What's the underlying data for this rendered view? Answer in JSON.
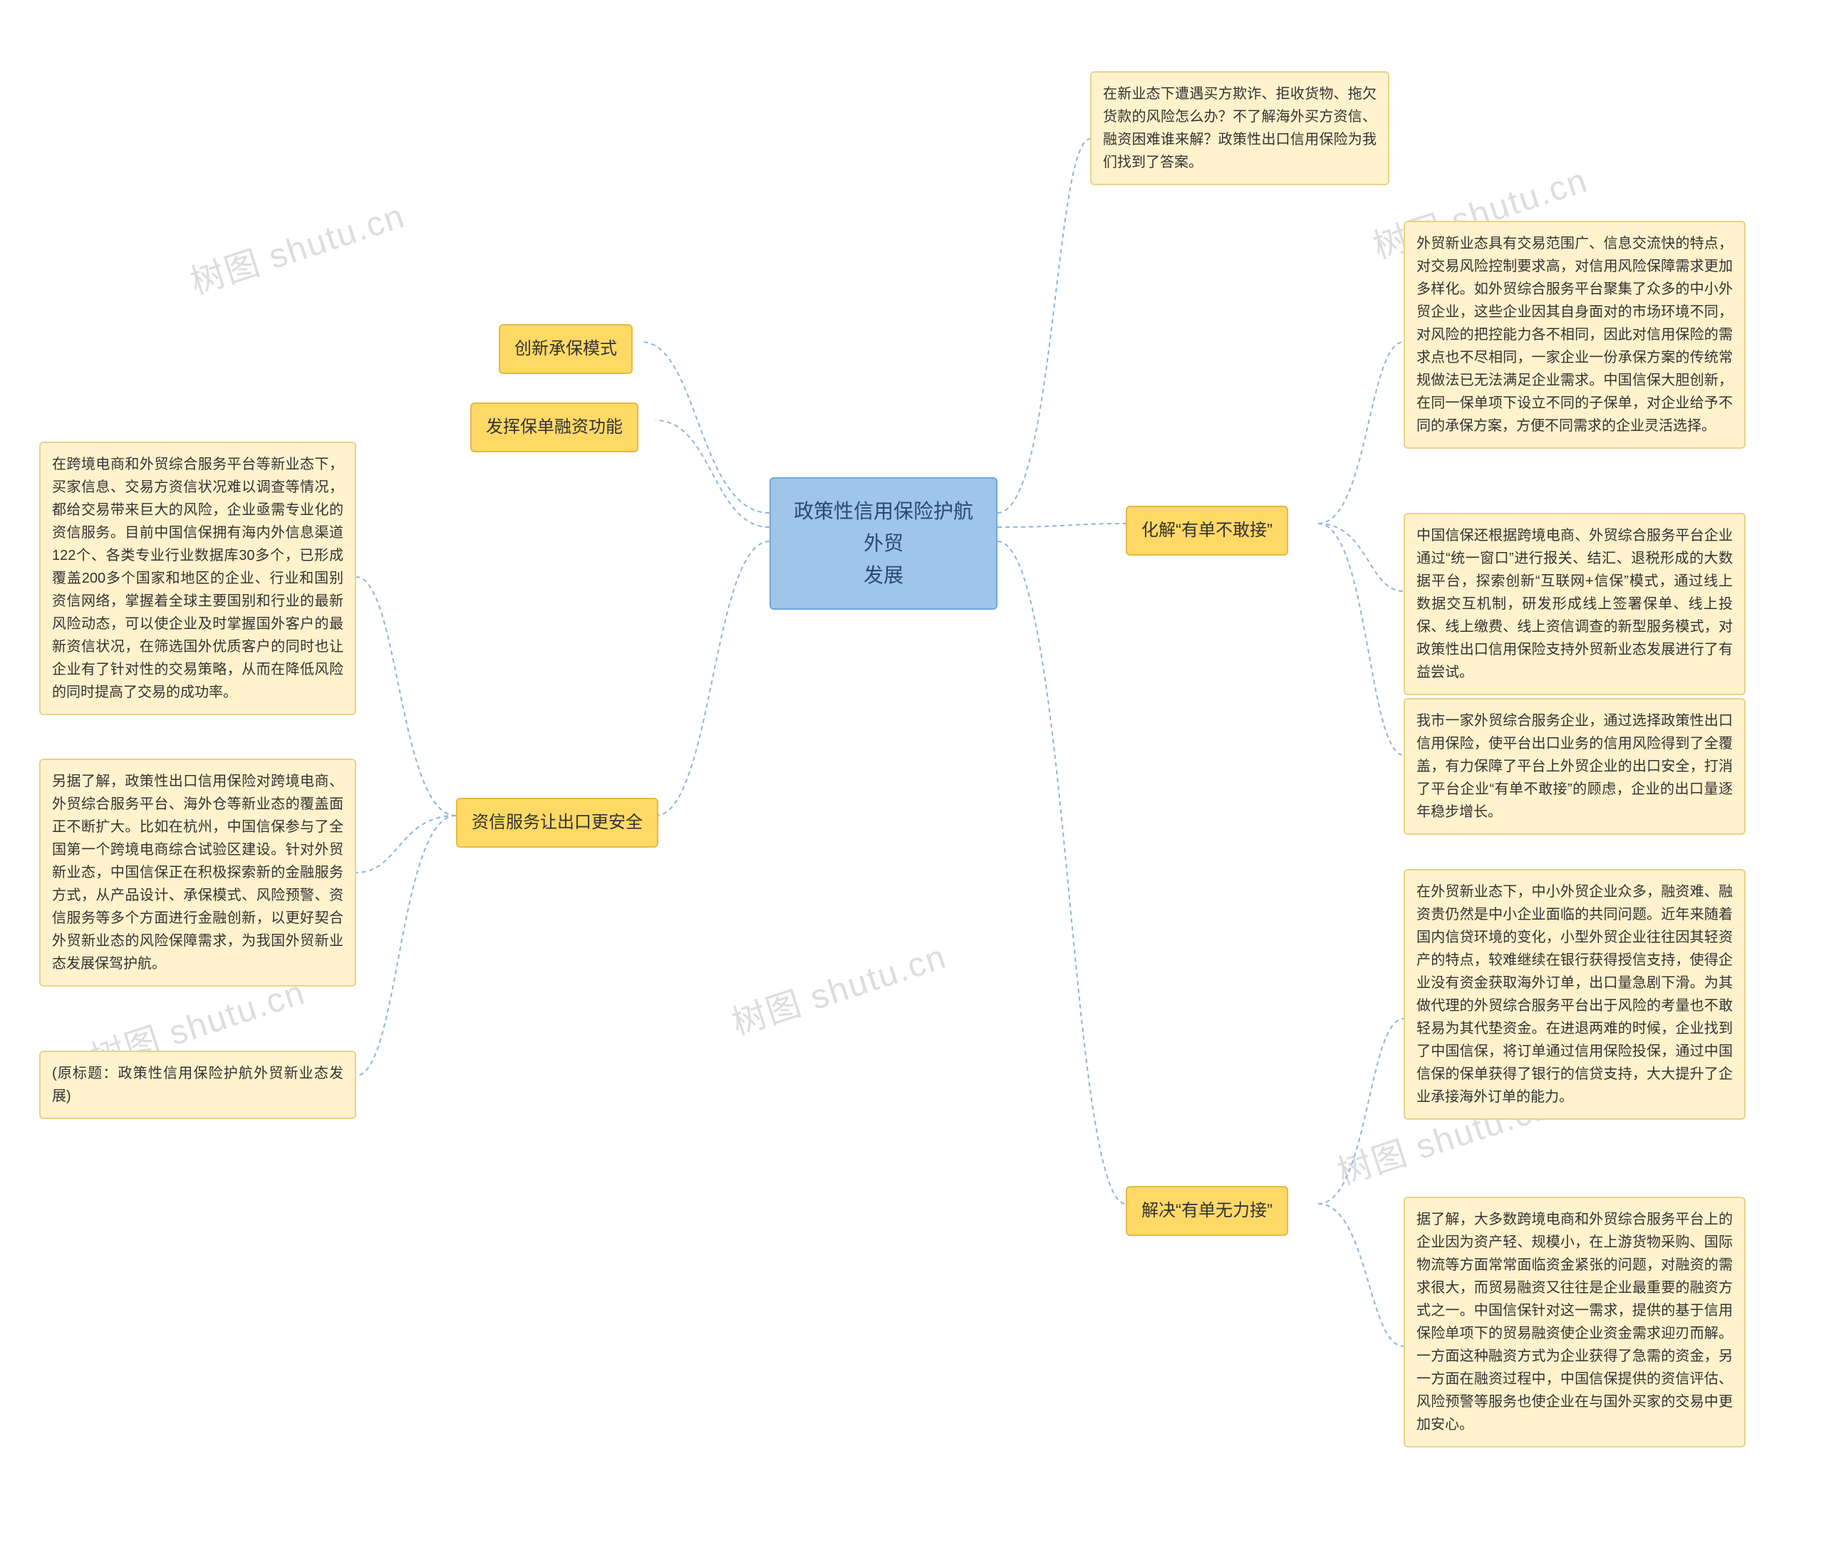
{
  "center": {
    "title": "政策性信用保险护航外贸\n发展"
  },
  "watermark": "树图 shutu.cn",
  "colors": {
    "center_fill": "#9fc5e8",
    "center_border": "#6fa8dc",
    "topic_fill": "#ffd966",
    "topic_border": "#e6b93f",
    "detail_fill": "#fff2cc",
    "detail_border": "#e8d28a",
    "connector": "#8fb4d9",
    "background": "#ffffff"
  },
  "left_branches": [
    {
      "label": "创新承保模式",
      "details": []
    },
    {
      "label": "发挥保单融资功能",
      "details": []
    },
    {
      "label": "资信服务让出口更安全",
      "details": [
        "在跨境电商和外贸综合服务平台等新业态下，买家信息、交易方资信状况难以调查等情况，都给交易带来巨大的风险，企业亟需专业化的资信服务。目前中国信保拥有海内外信息渠道122个、各类专业行业数据库30多个，已形成覆盖200多个国家和地区的企业、行业和国别资信网络，掌握着全球主要国别和行业的最新风险动态，可以使企业及时掌握国外客户的最新资信状况，在筛选国外优质客户的同时也让企业有了针对性的交易策略，从而在降低风险的同时提高了交易的成功率。",
        "另据了解，政策性出口信用保险对跨境电商、外贸综合服务平台、海外仓等新业态的覆盖面正不断扩大。比如在杭州，中国信保参与了全国第一个跨境电商综合试验区建设。针对外贸新业态，中国信保正在积极探索新的金融服务方式，从产品设计、承保模式、风险预警、资信服务等多个方面进行金融创新，以更好契合外贸新业态的风险保障需求，为我国外贸新业态发展保驾护航。",
        "(原标题：政策性信用保险护航外贸新业态发展)"
      ]
    }
  ],
  "right_top_detail": "在新业态下遭遇买方欺诈、拒收货物、拖欠货款的风险怎么办？不了解海外买方资信、融资困难谁来解？政策性出口信用保险为我们找到了答案。",
  "right_branches": [
    {
      "label": "化解“有单不敢接”",
      "details": [
        "外贸新业态具有交易范围广、信息交流快的特点，对交易风险控制要求高，对信用风险保障需求更加多样化。如外贸综合服务平台聚集了众多的中小外贸企业，这些企业因其自身面对的市场环境不同，对风险的把控能力各不相同，因此对信用保险的需求点也不尽相同，一家企业一份承保方案的传统常规做法已无法满足企业需求。中国信保大胆创新，在同一保单项下设立不同的子保单，对企业给予不同的承保方案，方便不同需求的企业灵活选择。",
        "中国信保还根据跨境电商、外贸综合服务平台企业通过“统一窗口”进行报关、结汇、退税形成的大数据平台，探索创新“互联网+信保”模式，通过线上数据交互机制，研发形成线上签署保单、线上投保、线上缴费、线上资信调查的新型服务模式，对政策性出口信用保险支持外贸新业态发展进行了有益尝试。",
        "我市一家外贸综合服务企业，通过选择政策性出口信用保险，使平台出口业务的信用风险得到了全覆盖，有力保障了平台上外贸企业的出口安全，打消了平台企业“有单不敢接”的顾虑，企业的出口量逐年稳步增长。"
      ]
    },
    {
      "label": "解决“有单无力接”",
      "details": [
        "在外贸新业态下，中小外贸企业众多，融资难、融资贵仍然是中小企业面临的共同问题。近年来随着国内信贷环境的变化，小型外贸企业往往因其轻资产的特点，较难继续在银行获得授信支持，使得企业没有资金获取海外订单，出口量急剧下滑。为其做代理的外贸综合服务平台出于风险的考量也不敢轻易为其代垫资金。在进退两难的时候，企业找到了中国信保，将订单通过信用保险投保，通过中国信保的保单获得了银行的信贷支持，大大提升了企业承接海外订单的能力。",
        "据了解，大多数跨境电商和外贸综合服务平台上的企业因为资产轻、规模小，在上游货物采购、国际物流等方面常常面临资金紧张的问题，对融资的需求很大，而贸易融资又往往是企业最重要的融资方式之一。中国信保针对这一需求，提供的基于信用保险单项下的贸易融资使企业资金需求迎刃而解。一方面这种融资方式为企业获得了急需的资金，另一方面在融资过程中，中国信保提供的资信评估、风险预警等服务也使企业在与国外买家的交易中更加安心。"
      ]
    }
  ]
}
